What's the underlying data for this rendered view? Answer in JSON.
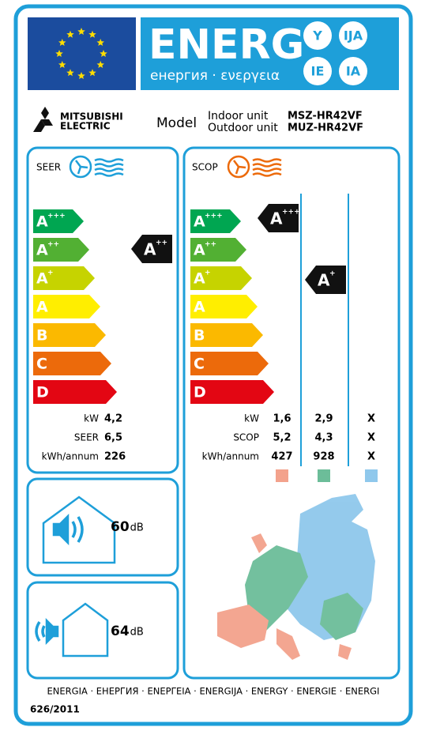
{
  "header": {
    "word": "ENERG",
    "subtitle": "енергия · ενεργεια",
    "badges": [
      "Y",
      "IJA",
      "IE",
      "IA"
    ]
  },
  "brand": {
    "line1": "MITSUBISHI",
    "line2": "ELECTRIC"
  },
  "model": {
    "label": "Model",
    "indoor_label": "Indoor unit",
    "outdoor_label": "Outdoor unit",
    "indoor": "MSZ-HR42VF",
    "outdoor": "MUZ-HR42VF"
  },
  "classes": [
    {
      "letter": "A",
      "sup": "+++",
      "color": "#00a651"
    },
    {
      "letter": "A",
      "sup": "++",
      "color": "#52b033"
    },
    {
      "letter": "A",
      "sup": "+",
      "color": "#c6d300"
    },
    {
      "letter": "A",
      "color": "#ffee00"
    },
    {
      "letter": "B",
      "color": "#fbb900"
    },
    {
      "letter": "C",
      "color": "#ec6a0b"
    },
    {
      "letter": "D",
      "color": "#e30613"
    }
  ],
  "cooling": {
    "label": "SEER",
    "rating": {
      "letter": "A",
      "sup": "++"
    },
    "rows": [
      {
        "label": "kW",
        "values": [
          "4,2"
        ]
      },
      {
        "label": "SEER",
        "values": [
          "6,5"
        ]
      },
      {
        "label": "kWh/annum",
        "values": [
          "226"
        ]
      }
    ]
  },
  "heating": {
    "label": "SCOP",
    "ratings": [
      {
        "letter": "A",
        "sup": "+++"
      },
      {
        "letter": "A",
        "sup": "+"
      }
    ],
    "rows": [
      {
        "label": "kW",
        "values": [
          "1,6",
          "2,9",
          "X"
        ]
      },
      {
        "label": "SCOP",
        "values": [
          "5,2",
          "4,3",
          "X"
        ]
      },
      {
        "label": "kWh/annum",
        "values": [
          "427",
          "928",
          "X"
        ]
      }
    ],
    "zone_colors": [
      "#f3a28c",
      "#6cbd99",
      "#8fc8ec"
    ]
  },
  "noise": [
    {
      "value": "60",
      "unit": "dB"
    },
    {
      "value": "64",
      "unit": "dB"
    }
  ],
  "footer": {
    "languages": "ENERGIA · ЕНЕРГИЯ · ΕΝΕΡΓΕΙΑ · ENERGIJA · ENERGY · ENERGIE · ENERGI",
    "regulation": "626/2011"
  }
}
